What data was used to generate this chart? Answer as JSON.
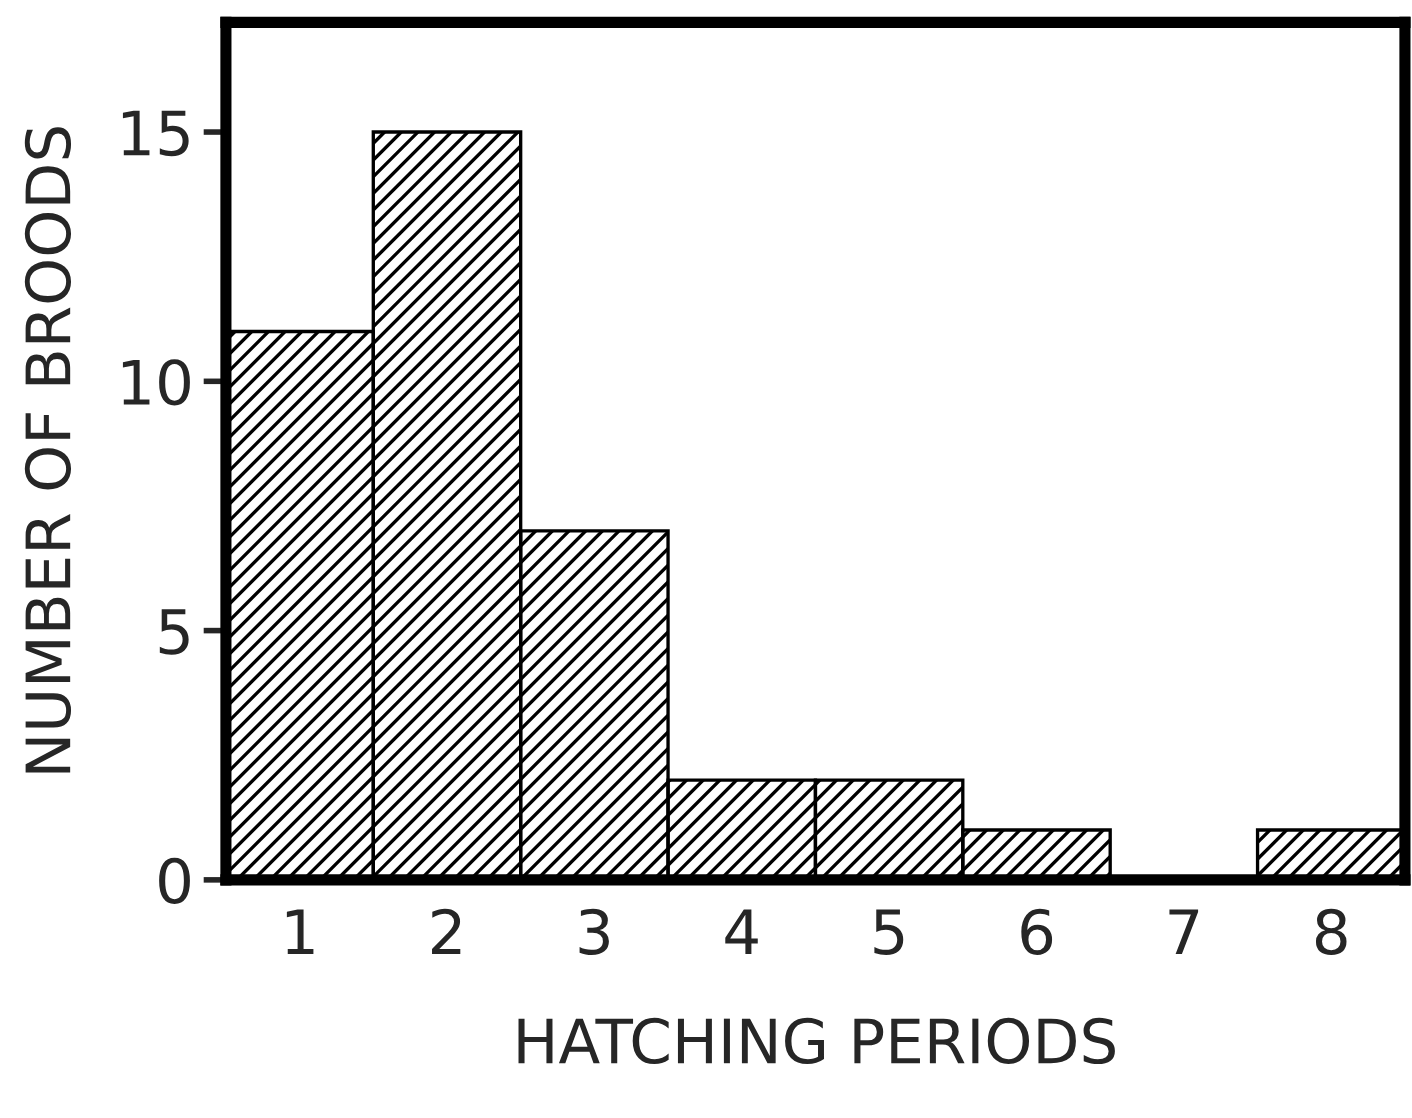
{
  "chart_data": {
    "type": "bar",
    "xlabel": "HATCHING PERIODS",
    "ylabel": "NUMBER OF BROODS",
    "categories": [
      "1",
      "2",
      "3",
      "4",
      "5",
      "6",
      "7",
      "8"
    ],
    "values": [
      11,
      15,
      7,
      2,
      2,
      1,
      0,
      1
    ],
    "color": "#000000",
    "ylim": [
      0,
      17.2
    ],
    "yticks": [
      0,
      5,
      10,
      15
    ],
    "grid": false,
    "legend": false
  }
}
